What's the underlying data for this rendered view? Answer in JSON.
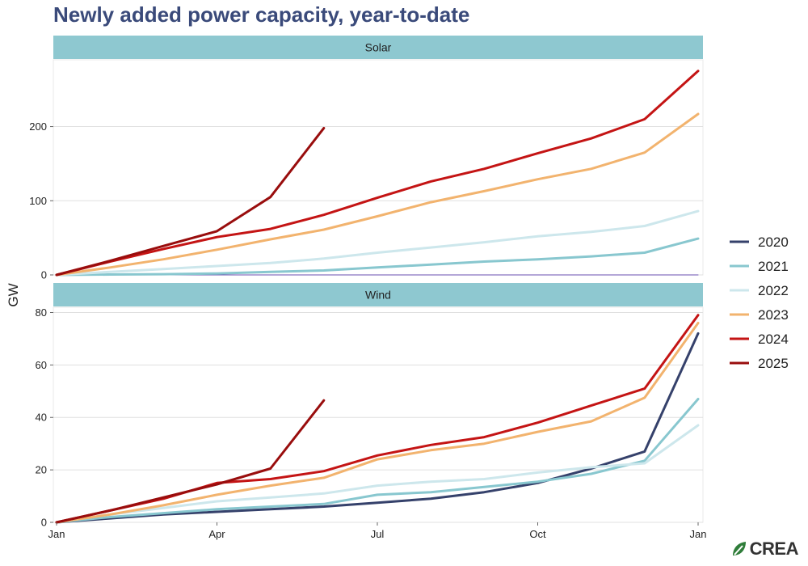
{
  "title": "Newly added power capacity, year-to-date",
  "logo": {
    "text": "CREA"
  },
  "chart_data": {
    "type": "line",
    "ylabel": "GW",
    "xlabel": "",
    "x_ticks": [
      {
        "label": "Jan",
        "month": 0
      },
      {
        "label": "Apr",
        "month": 3
      },
      {
        "label": "Jul",
        "month": 6
      },
      {
        "label": "Oct",
        "month": 9
      },
      {
        "label": "Jan",
        "month": 12
      }
    ],
    "legend_position": "right",
    "series_colors": {
      "2020": "#35416b",
      "2021": "#88c7cf",
      "2022": "#cde7ec",
      "2023": "#f2b36e",
      "2024": "#c41414",
      "2025": "#990d0d"
    },
    "legend": [
      "2020",
      "2021",
      "2022",
      "2023",
      "2024",
      "2025"
    ],
    "facets": [
      {
        "name": "Solar",
        "ylim": [
          0,
          290
        ],
        "yticks": [
          0,
          100,
          200
        ],
        "series": [
          {
            "name": "2020",
            "x": [
              0,
              1,
              2,
              3,
              4,
              5,
              6,
              7,
              8,
              9,
              10,
              11,
              12
            ],
            "values": [
              0,
              0,
              0,
              0,
              0,
              0,
              0,
              0,
              0,
              0,
              0,
              0,
              0
            ]
          },
          {
            "name": "2021",
            "x": [
              0,
              1,
              2,
              3,
              4,
              5,
              6,
              7,
              8,
              9,
              10,
              11,
              12
            ],
            "values": [
              0,
              0.5,
              1,
              2,
              4,
              6,
              10,
              14,
              18,
              21,
              25,
              30,
              49
            ]
          },
          {
            "name": "2022",
            "x": [
              0,
              1,
              2,
              3,
              4,
              5,
              6,
              7,
              8,
              9,
              10,
              11,
              12
            ],
            "values": [
              0,
              4,
              8,
              12,
              16,
              22,
              30,
              37,
              44,
              52,
              58,
              66,
              86
            ]
          },
          {
            "name": "2023",
            "x": [
              0,
              1,
              2,
              3,
              4,
              5,
              6,
              7,
              8,
              9,
              10,
              11,
              12
            ],
            "values": [
              0,
              10,
              21,
              34,
              48,
              61,
              79,
              98,
              113,
              129,
              143,
              165,
              217
            ]
          },
          {
            "name": "2024",
            "x": [
              0,
              1,
              2,
              3,
              4,
              5,
              6,
              7,
              8,
              9,
              10,
              11,
              12
            ],
            "values": [
              0,
              18,
              35,
              51,
              62,
              81,
              104,
              126,
              143,
              164,
              184,
              210,
              275
            ]
          },
          {
            "name": "2025",
            "x": [
              0,
              1,
              2,
              3,
              4,
              5
            ],
            "values": [
              0,
              19,
              39,
              59,
              105,
              198
            ]
          }
        ]
      },
      {
        "name": "Wind",
        "ylim": [
          0,
          82
        ],
        "yticks": [
          0,
          20,
          40,
          60,
          80
        ],
        "series": [
          {
            "name": "2020",
            "x": [
              0,
              1,
              2,
              3,
              4,
              5,
              6,
              7,
              8,
              9,
              10,
              11,
              12
            ],
            "values": [
              0,
              1.5,
              3,
              4,
              5,
              6,
              7.5,
              9,
              11.5,
              15,
              20.5,
              27,
              72
            ]
          },
          {
            "name": "2021",
            "x": [
              0,
              1,
              2,
              3,
              4,
              5,
              6,
              7,
              8,
              9,
              10,
              11,
              12
            ],
            "values": [
              0,
              2,
              3.5,
              5,
              6,
              7,
              10.5,
              11.5,
              13.5,
              15.5,
              18.5,
              23.5,
              47
            ]
          },
          {
            "name": "2022",
            "x": [
              0,
              1,
              2,
              3,
              4,
              5,
              6,
              7,
              8,
              9,
              10,
              11,
              12
            ],
            "values": [
              0,
              3,
              5.5,
              8,
              9.5,
              11,
              14,
              15.5,
              16.5,
              19,
              21,
              22.5,
              37
            ]
          },
          {
            "name": "2023",
            "x": [
              0,
              1,
              2,
              3,
              4,
              5,
              6,
              7,
              8,
              9,
              10,
              11,
              12
            ],
            "values": [
              0,
              3,
              6.5,
              10.5,
              14,
              17,
              24,
              27.5,
              30,
              34.5,
              38.5,
              47.5,
              76
            ]
          },
          {
            "name": "2024",
            "x": [
              0,
              1,
              2,
              3,
              4,
              5,
              6,
              7,
              8,
              9,
              10,
              11,
              12
            ],
            "values": [
              0,
              4.5,
              9,
              15,
              16.5,
              19.5,
              25.5,
              29.5,
              32.5,
              38,
              44.5,
              51,
              79
            ]
          },
          {
            "name": "2025",
            "x": [
              0,
              1,
              2,
              3,
              4,
              5
            ],
            "values": [
              0,
              4.5,
              9.5,
              14.5,
              20.5,
              46.5
            ]
          }
        ]
      }
    ]
  }
}
